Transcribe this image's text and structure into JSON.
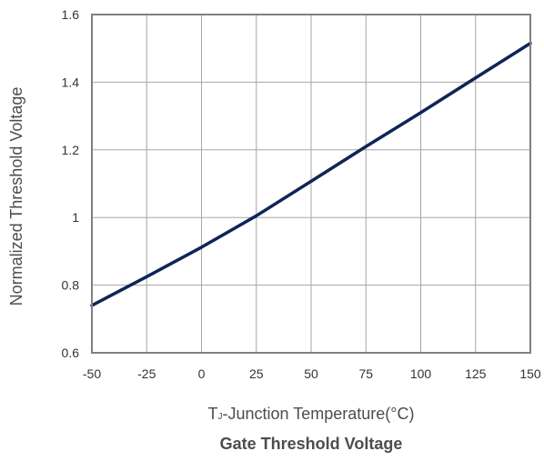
{
  "chart_data": {
    "type": "line",
    "title": "Gate Threshold Voltage",
    "xlabel": {
      "main": "T",
      "sub": "J",
      "rest": "-Junction Temperature(°C)"
    },
    "ylabel": "Normalized Threshold Voltage",
    "xlim": [
      -50,
      150
    ],
    "ylim": [
      0.6,
      1.6
    ],
    "xticks": [
      "-50",
      "-25",
      "0",
      "25",
      "50",
      "75",
      "100",
      "125",
      "150"
    ],
    "yticks": [
      "0.6",
      "0.8",
      "1",
      "1.2",
      "1.4",
      "1.6"
    ],
    "grid": true,
    "series": [
      {
        "color": "#0d2656",
        "x": [
          -50,
          -25,
          0,
          25,
          50,
          75,
          100,
          125,
          150
        ],
        "y": [
          0.74,
          0.825,
          0.912,
          1.005,
          1.107,
          1.21,
          1.31,
          1.413,
          1.515
        ]
      }
    ]
  }
}
